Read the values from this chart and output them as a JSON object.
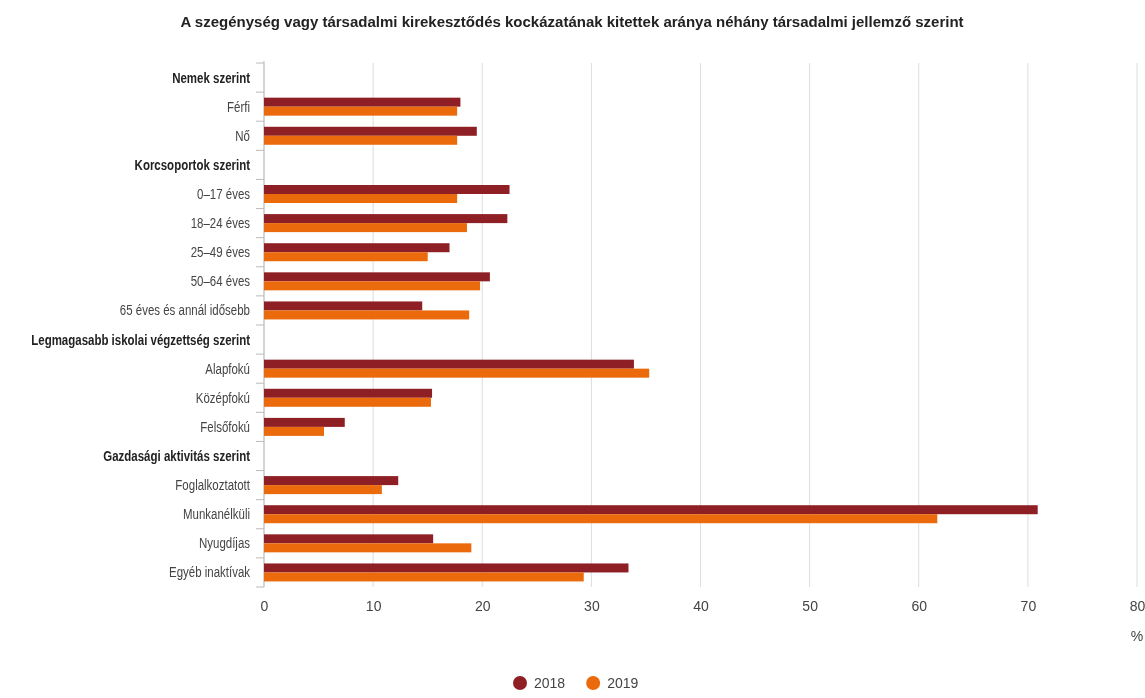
{
  "chart_data": {
    "type": "bar",
    "orientation": "horizontal",
    "title": "A szegénység vagy társadalmi kirekesztődés kockázatának kitettek aránya néhány társadalmi jellemző szerint",
    "xlabel": "%",
    "categories": [
      "Nemek szerint",
      "Férfi",
      "Nő",
      "Korcsoportok szerint",
      "0–17 éves",
      "18–24 éves",
      "25–49 éves",
      "50–64 éves",
      "65 éves és annál idősebb",
      "Legmagasabb iskolai végzettség szerint",
      "Alapfokú",
      "Középfokú",
      "Felsőfokú",
      "Gazdasági aktivitás szerint",
      "Foglalkoztatott",
      "Munkanélküli",
      "Nyugdíjas",
      "Egyéb inaktívak"
    ],
    "series": [
      {
        "name": "2018",
        "color": "#8e1f24",
        "values": [
          null,
          18.0,
          19.5,
          null,
          22.5,
          22.3,
          17.0,
          20.7,
          14.5,
          null,
          33.9,
          15.4,
          7.4,
          null,
          12.3,
          70.9,
          15.5,
          33.4
        ]
      },
      {
        "name": "2019",
        "color": "#ea6a0c",
        "values": [
          null,
          17.7,
          17.7,
          null,
          17.7,
          18.6,
          15.0,
          19.8,
          18.8,
          null,
          35.3,
          15.3,
          5.5,
          null,
          10.8,
          61.7,
          19.0,
          29.3
        ]
      }
    ],
    "xlim": [
      0,
      80
    ],
    "xticks": [
      0,
      10,
      20,
      30,
      40,
      50,
      60,
      70,
      80
    ],
    "grid": "x",
    "legend": "bottom",
    "marker": "circle"
  }
}
